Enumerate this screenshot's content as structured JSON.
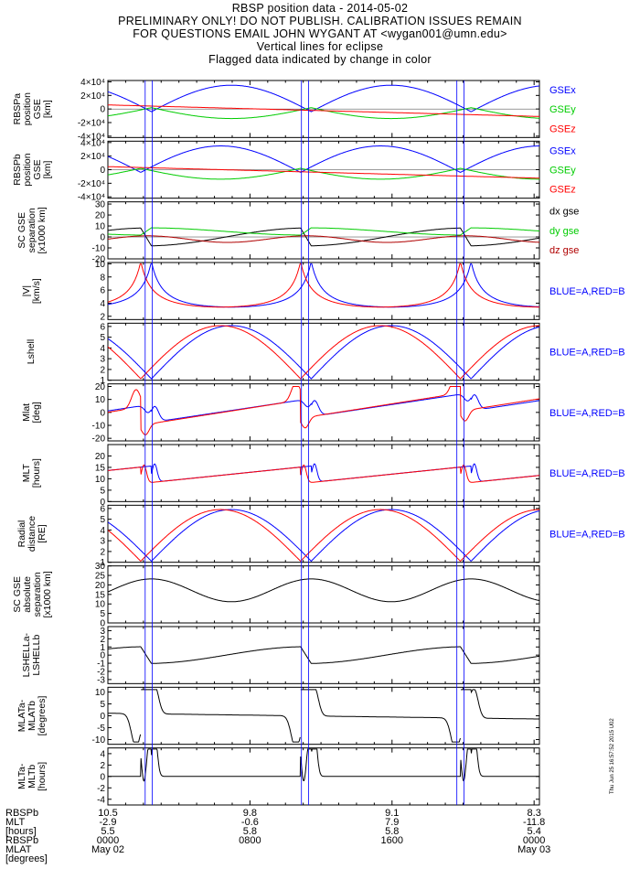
{
  "header": {
    "title": "RBSP position data - 2014-05-02",
    "line2": "PRELIMINARY ONLY! DO NOT PUBLISH. CALIBRATION ISSUES REMAIN",
    "line3": "FOR QUESTIONS EMAIL JOHN WYGANT AT <wygan001@umn.edu>",
    "line4": "Vertical lines for eclipse",
    "line5": "Flagged data indicated by change in color"
  },
  "colors": {
    "blue": "#0000ff",
    "red": "#ff0000",
    "green": "#00cc00",
    "black": "#000000",
    "darkred": "#b00000"
  },
  "chart_data": {
    "type": "line",
    "x_unit": "hours UT",
    "xlim": [
      0,
      24.3
    ],
    "eclipse_x": [
      2.1,
      2.5,
      10.9,
      11.3,
      19.65,
      20.05
    ],
    "panels": [
      {
        "id": "gsea",
        "ylabel": [
          "RBSPa",
          "position",
          "GSE",
          "[km]"
        ],
        "ylim": [
          -42000,
          42000
        ],
        "yticks": [
          -40000,
          -20000,
          0,
          20000,
          40000
        ],
        "ytick_labels": [
          "-4×10⁴",
          "-2×10⁴",
          "0",
          "2×10⁴",
          "4×10⁴"
        ],
        "legend": [
          "GSEx",
          "GSEy",
          "GSEz"
        ],
        "legend_colors": [
          "blue",
          "green",
          "red"
        ]
      },
      {
        "id": "gseb",
        "ylabel": [
          "RBSPb",
          "position",
          "GSE",
          "[km]"
        ],
        "ylim": [
          -42000,
          42000
        ],
        "yticks": [
          -40000,
          -20000,
          0,
          20000,
          40000
        ],
        "ytick_labels": [
          "-4×10⁴",
          "-2×10⁴",
          "0",
          "2×10⁴",
          "4×10⁴"
        ],
        "legend": [
          "GSEx",
          "GSEy",
          "GSEz"
        ],
        "legend_colors": [
          "blue",
          "green",
          "red"
        ]
      },
      {
        "id": "sep",
        "ylabel": [
          "SC GSE",
          "separation",
          "[x1000 km]"
        ],
        "ylim": [
          -20,
          32
        ],
        "yticks": [
          -20,
          -10,
          0,
          10,
          20,
          30
        ],
        "ytick_labels": [
          "-20",
          "-10",
          "0",
          "10",
          "20",
          "30"
        ],
        "legend": [
          "dx gse",
          "dy gse",
          "dz gse"
        ],
        "legend_colors": [
          "black",
          "green",
          "darkred"
        ]
      },
      {
        "id": "vel",
        "ylabel": [
          "|V|",
          "[km/s]"
        ],
        "ylim": [
          1.5,
          10.2
        ],
        "yticks": [
          2,
          4,
          6,
          8,
          10
        ],
        "ytick_labels": [
          "2",
          "4",
          "6",
          "8",
          "10"
        ],
        "legend": [
          "BLUE=A,RED=B"
        ],
        "legend_colors": [
          "blue"
        ]
      },
      {
        "id": "lshell",
        "ylabel": [
          "Lshell"
        ],
        "ylim": [
          1,
          6.3
        ],
        "yticks": [
          1,
          2,
          3,
          4,
          5,
          6
        ],
        "ytick_labels": [
          "1",
          "2",
          "3",
          "4",
          "5",
          "6"
        ],
        "legend": [
          "BLUE=A,RED=B"
        ],
        "legend_colors": [
          "blue"
        ]
      },
      {
        "id": "mlat",
        "ylabel": [
          "Mlat",
          "[deg]"
        ],
        "ylim": [
          -22,
          22
        ],
        "yticks": [
          -20,
          -10,
          0,
          10,
          20
        ],
        "ytick_labels": [
          "-20",
          "-10",
          "0",
          "10",
          "20"
        ],
        "legend": [
          "BLUE=A,RED=B"
        ],
        "legend_colors": [
          "blue"
        ]
      },
      {
        "id": "mlt",
        "ylabel": [
          "MLT",
          "[hours]"
        ],
        "ylim": [
          0,
          25
        ],
        "yticks": [
          0,
          5,
          10,
          15,
          20
        ],
        "ytick_labels": [
          "0",
          "5",
          "10",
          "15",
          "20"
        ],
        "legend": [
          "BLUE=A,RED=B"
        ],
        "legend_colors": [
          "blue"
        ]
      },
      {
        "id": "rad",
        "ylabel": [
          "Radial",
          "distance",
          "[RE]"
        ],
        "ylim": [
          1,
          6.3
        ],
        "yticks": [
          1,
          2,
          3,
          4,
          5,
          6
        ],
        "ytick_labels": [
          "1",
          "2",
          "3",
          "4",
          "5",
          "6"
        ],
        "legend": [
          "BLUE=A,RED=B"
        ],
        "legend_colors": [
          "blue"
        ]
      },
      {
        "id": "abssep",
        "ylabel": [
          "SC GSE",
          "absolute",
          "separation",
          "[x1000 km]"
        ],
        "ylim": [
          0,
          30
        ],
        "yticks": [
          0,
          5,
          10,
          15,
          20,
          25,
          30
        ],
        "ytick_labels": [
          "0",
          "5",
          "10",
          "15",
          "20",
          "25",
          "30"
        ],
        "legend": [],
        "legend_colors": []
      },
      {
        "id": "dlshell",
        "ylabel": [
          "LSHELLa-",
          "LSHELLb"
        ],
        "ylim": [
          -3.5,
          3.5
        ],
        "yticks": [
          -3,
          -2,
          -1,
          0,
          1,
          2,
          3
        ],
        "ytick_labels": [
          "-3",
          "-2",
          "-1",
          "0",
          "1",
          "2",
          "3"
        ],
        "legend": [],
        "legend_colors": []
      },
      {
        "id": "dmlat",
        "ylabel": [
          "MLATa-",
          "MLATb",
          "[degrees]"
        ],
        "ylim": [
          -12,
          12
        ],
        "yticks": [
          -10,
          -5,
          0,
          5,
          10
        ],
        "ytick_labels": [
          "-10",
          "-5",
          "0",
          "5",
          "10"
        ],
        "legend": [],
        "legend_colors": []
      },
      {
        "id": "dmlt",
        "ylabel": [
          "MLTa-",
          "MLTb",
          "[hours]"
        ],
        "ylim": [
          -5,
          5
        ],
        "yticks": [
          -4,
          -2,
          0,
          2,
          4
        ],
        "ytick_labels": [
          "-4",
          "-2",
          "0",
          "2",
          "4"
        ],
        "legend": [],
        "legend_colors": []
      }
    ],
    "x_axis_rows": {
      "labels": [
        "RBSPb",
        "MLT",
        "[hours]",
        "RBSPb",
        "MLAT",
        "[degrees]"
      ],
      "columns": [
        {
          "x": 0.0,
          "values": [
            "10.5",
            "-2.9",
            "5.5",
            "0000",
            "May 02"
          ]
        },
        {
          "x": 8.0,
          "values": [
            "9.8",
            "-0.6",
            "5.8",
            "0800",
            ""
          ]
        },
        {
          "x": 16.0,
          "values": [
            "9.1",
            "7.9",
            "5.8",
            "1600",
            ""
          ]
        },
        {
          "x": 24.0,
          "values": [
            "8.3",
            "-11.8",
            "5.4",
            "0000",
            "May 03"
          ]
        }
      ]
    },
    "stamp": "Thu Jun 25 16:57:52 2015 U02"
  }
}
